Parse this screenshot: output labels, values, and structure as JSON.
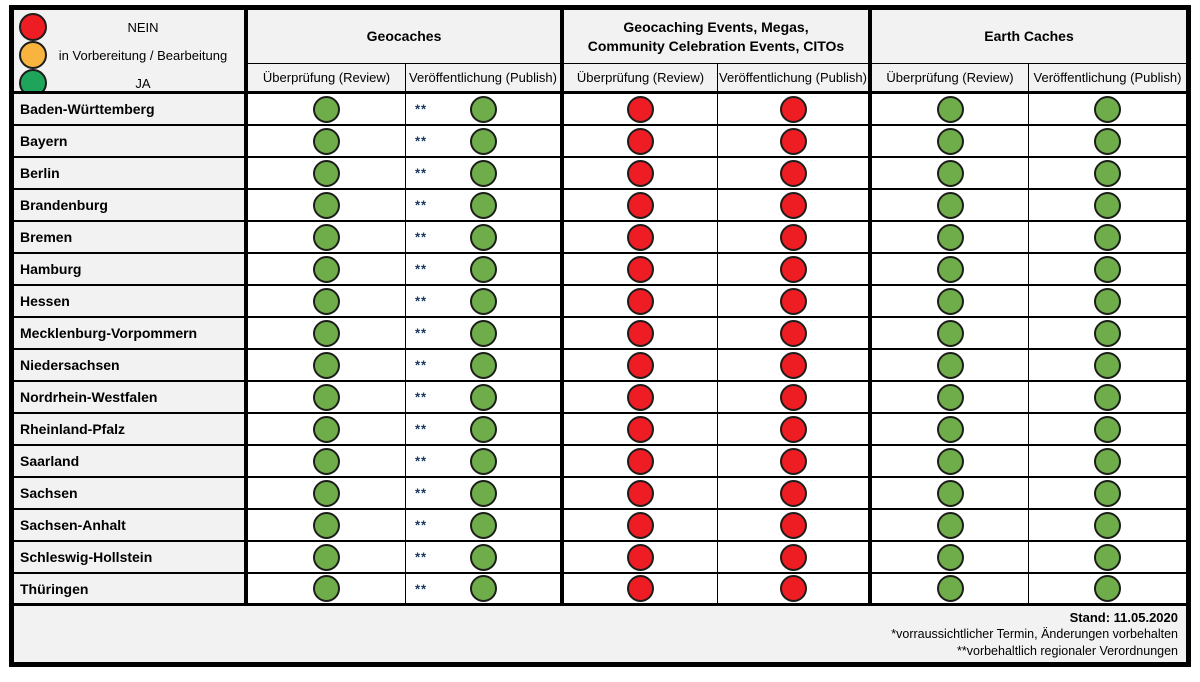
{
  "colors": {
    "red": "#ee1c23",
    "orange": "#f8b43f",
    "green_legend": "#1fa45c",
    "green_cell": "#6fad4b"
  },
  "legend": {
    "items": [
      {
        "status": "red",
        "label": "NEIN"
      },
      {
        "status": "orange",
        "label": "in Vorbereitung / Bearbeitung"
      },
      {
        "status": "green",
        "label": "JA"
      }
    ]
  },
  "columns": {
    "groups": [
      {
        "title": "Geocaches",
        "sub": [
          "Überprüfung (Review)",
          "Veröffentlichung (Publish)"
        ]
      },
      {
        "title": "Geocaching Events, Megas,\nCommunity Celebration Events, CITOs",
        "sub": [
          "Überprüfung (Review)",
          "Veröffentlichung (Publish)"
        ]
      },
      {
        "title": "Earth Caches",
        "sub": [
          "Überprüfung (Review)",
          "Veröffentlichung (Publish)"
        ]
      }
    ]
  },
  "rows": [
    {
      "state": "Baden-Württemberg",
      "cells": [
        {
          "status": "green"
        },
        {
          "status": "green",
          "note": "**"
        },
        {
          "status": "red"
        },
        {
          "status": "red"
        },
        {
          "status": "green"
        },
        {
          "status": "green"
        }
      ]
    },
    {
      "state": "Bayern",
      "cells": [
        {
          "status": "green"
        },
        {
          "status": "green",
          "note": "**"
        },
        {
          "status": "red"
        },
        {
          "status": "red"
        },
        {
          "status": "green"
        },
        {
          "status": "green"
        }
      ]
    },
    {
      "state": "Berlin",
      "cells": [
        {
          "status": "green"
        },
        {
          "status": "green",
          "note": "**"
        },
        {
          "status": "red"
        },
        {
          "status": "red"
        },
        {
          "status": "green"
        },
        {
          "status": "green"
        }
      ]
    },
    {
      "state": "Brandenburg",
      "cells": [
        {
          "status": "green"
        },
        {
          "status": "green",
          "note": "**"
        },
        {
          "status": "red"
        },
        {
          "status": "red"
        },
        {
          "status": "green"
        },
        {
          "status": "green"
        }
      ]
    },
    {
      "state": "Bremen",
      "cells": [
        {
          "status": "green"
        },
        {
          "status": "green",
          "note": "**"
        },
        {
          "status": "red"
        },
        {
          "status": "red"
        },
        {
          "status": "green"
        },
        {
          "status": "green"
        }
      ]
    },
    {
      "state": "Hamburg",
      "cells": [
        {
          "status": "green"
        },
        {
          "status": "green",
          "note": "**"
        },
        {
          "status": "red"
        },
        {
          "status": "red"
        },
        {
          "status": "green"
        },
        {
          "status": "green"
        }
      ]
    },
    {
      "state": "Hessen",
      "cells": [
        {
          "status": "green"
        },
        {
          "status": "green",
          "note": "**"
        },
        {
          "status": "red"
        },
        {
          "status": "red"
        },
        {
          "status": "green"
        },
        {
          "status": "green"
        }
      ]
    },
    {
      "state": "Mecklenburg-Vorpommern",
      "cells": [
        {
          "status": "green"
        },
        {
          "status": "green",
          "note": "**"
        },
        {
          "status": "red"
        },
        {
          "status": "red"
        },
        {
          "status": "green"
        },
        {
          "status": "green"
        }
      ]
    },
    {
      "state": "Niedersachsen",
      "cells": [
        {
          "status": "green"
        },
        {
          "status": "green",
          "note": "**"
        },
        {
          "status": "red"
        },
        {
          "status": "red"
        },
        {
          "status": "green"
        },
        {
          "status": "green"
        }
      ]
    },
    {
      "state": "Nordrhein-Westfalen",
      "cells": [
        {
          "status": "green"
        },
        {
          "status": "green",
          "note": "**"
        },
        {
          "status": "red"
        },
        {
          "status": "red"
        },
        {
          "status": "green"
        },
        {
          "status": "green"
        }
      ]
    },
    {
      "state": "Rheinland-Pfalz",
      "cells": [
        {
          "status": "green"
        },
        {
          "status": "green",
          "note": "**"
        },
        {
          "status": "red"
        },
        {
          "status": "red"
        },
        {
          "status": "green"
        },
        {
          "status": "green"
        }
      ]
    },
    {
      "state": "Saarland",
      "cells": [
        {
          "status": "green"
        },
        {
          "status": "green",
          "note": "**"
        },
        {
          "status": "red"
        },
        {
          "status": "red"
        },
        {
          "status": "green"
        },
        {
          "status": "green"
        }
      ]
    },
    {
      "state": "Sachsen",
      "cells": [
        {
          "status": "green"
        },
        {
          "status": "green",
          "note": "**"
        },
        {
          "status": "red"
        },
        {
          "status": "red"
        },
        {
          "status": "green"
        },
        {
          "status": "green"
        }
      ]
    },
    {
      "state": "Sachsen-Anhalt",
      "cells": [
        {
          "status": "green"
        },
        {
          "status": "green",
          "note": "**"
        },
        {
          "status": "red"
        },
        {
          "status": "red"
        },
        {
          "status": "green"
        },
        {
          "status": "green"
        }
      ]
    },
    {
      "state": "Schleswig-Hollstein",
      "cells": [
        {
          "status": "green"
        },
        {
          "status": "green",
          "note": "**"
        },
        {
          "status": "red"
        },
        {
          "status": "red"
        },
        {
          "status": "green"
        },
        {
          "status": "green"
        }
      ]
    },
    {
      "state": "Thüringen",
      "cells": [
        {
          "status": "green"
        },
        {
          "status": "green",
          "note": "**"
        },
        {
          "status": "red"
        },
        {
          "status": "red"
        },
        {
          "status": "green"
        },
        {
          "status": "green"
        }
      ]
    }
  ],
  "footer": {
    "stand": "Stand: 11.05.2020",
    "note1": "*vorraussichtlicher Termin, Änderungen vorbehalten",
    "note2": "**vorbehaltlich regionaler Verordnungen"
  }
}
